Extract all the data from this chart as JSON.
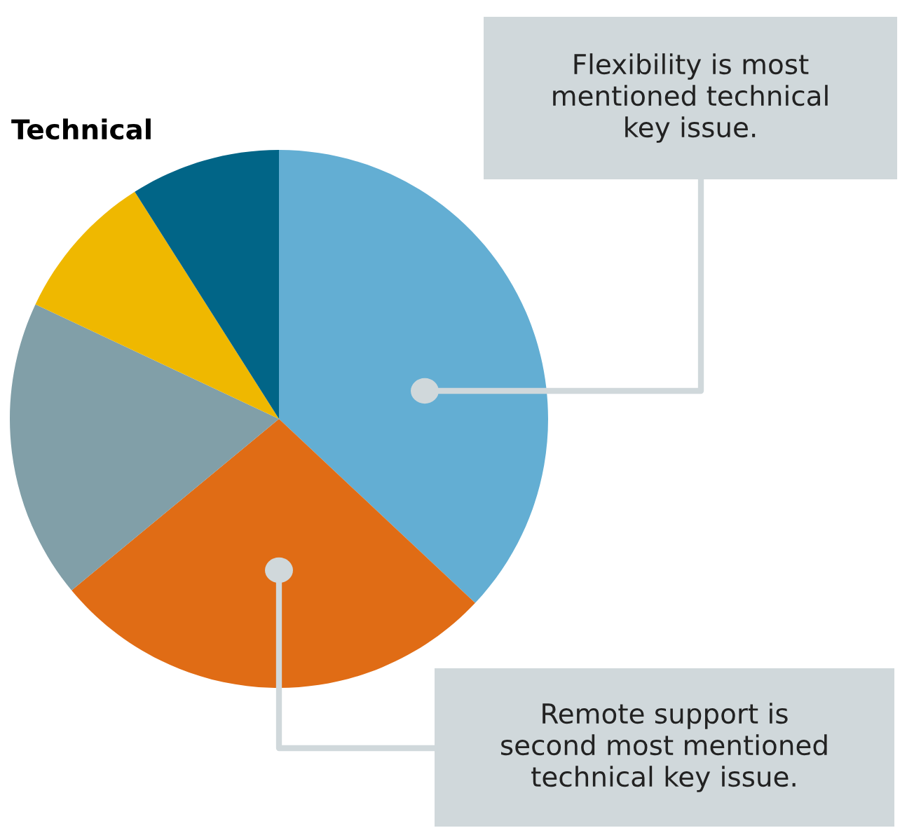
{
  "chart_data": {
    "type": "pie",
    "title": "Technical",
    "categories": [
      null,
      null,
      null,
      null,
      null
    ],
    "values": [
      37,
      27,
      18,
      9,
      9
    ],
    "colors": [
      "#63aed3",
      "#e06c15",
      "#819fa8",
      "#efb800",
      "#016587"
    ],
    "annotations": [
      "Flexibility is most\nmentioned technical\nkey issue.",
      "Remote support is\nsecond most mentioned\ntechnical key issue."
    ]
  }
}
